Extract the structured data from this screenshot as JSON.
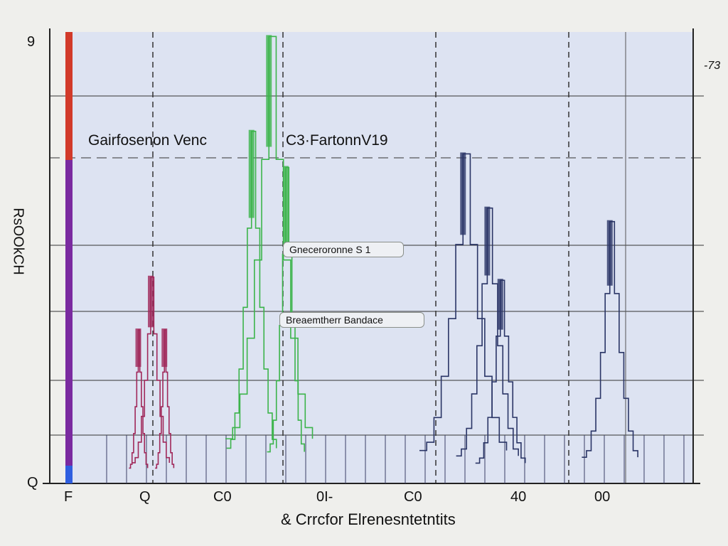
{
  "chart_data": {
    "type": "line",
    "title": "",
    "xlabel": "& Crrcfor Elrenesntetntits",
    "ylabel": "RsOOkCH",
    "xlim": [
      0,
      100
    ],
    "ylim": [
      0,
      100
    ],
    "grid": true,
    "x_tick_labels": [
      "F",
      "Q",
      "C0",
      "0I-",
      "C0",
      "40",
      "00"
    ],
    "y_tick_labels": {
      "top": "9",
      "bottom": "Q",
      "right_top": "-73"
    },
    "annotations": [
      "Gairfosenon Venc",
      "C3·FartonnV19",
      "Gneceroronne S 1",
      "Breaemtherr Bandace"
    ],
    "colors": {
      "bg": "#dde3f2",
      "magenta": "#b0206a",
      "green": "#3cb44b",
      "navy": "#2a3566",
      "bar": "#7a2aa0"
    },
    "series": [
      {
        "name": "magenta",
        "color": "#a0285a",
        "peaks": [
          {
            "x": 12.8,
            "h": 45.7,
            "w": 6
          },
          {
            "x": 10.8,
            "h": 34,
            "w": 3
          },
          {
            "x": 15,
            "h": 34,
            "w": 3
          }
        ]
      },
      {
        "name": "green",
        "color": "#3cb44b",
        "peaks": [
          {
            "x": 31.8,
            "h": 99,
            "w": 14
          },
          {
            "x": 29,
            "h": 78,
            "w": 8
          },
          {
            "x": 34.5,
            "h": 70,
            "w": 6
          }
        ]
      },
      {
        "name": "navy",
        "color": "#2a3566",
        "peaks": [
          {
            "x": 63,
            "h": 73,
            "w": 14
          },
          {
            "x": 66.9,
            "h": 61,
            "w": 10
          },
          {
            "x": 69,
            "h": 45,
            "w": 8
          },
          {
            "x": 86.6,
            "h": 58,
            "w": 9
          }
        ]
      }
    ]
  }
}
